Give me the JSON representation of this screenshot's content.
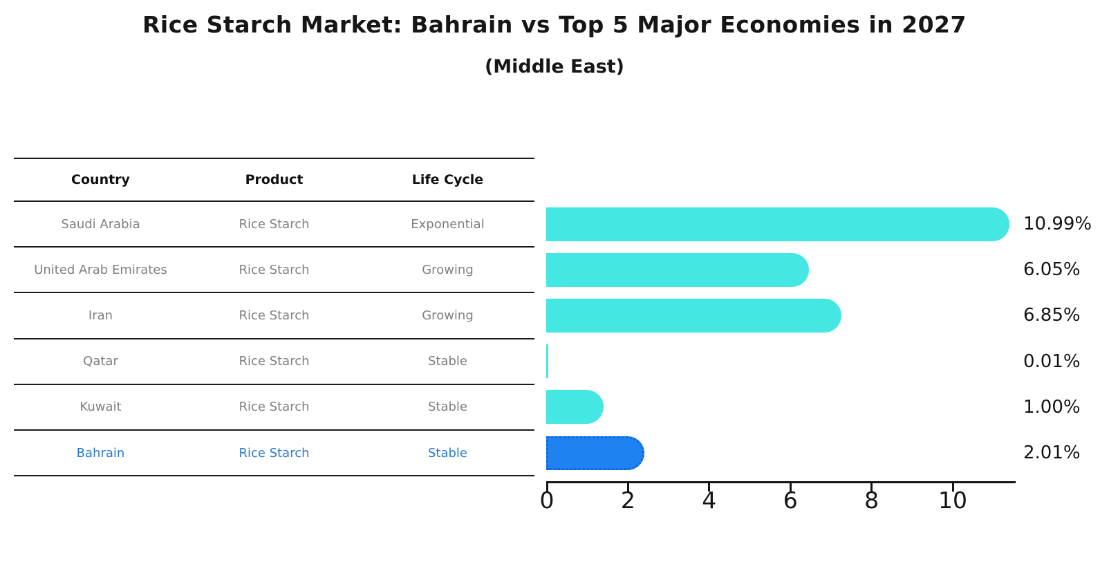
{
  "title": "Rice Starch Market: Bahrain vs Top 5 Major Economies in 2027",
  "subtitle": "(Middle East)",
  "table": {
    "headers": [
      "Country",
      "Product",
      "Life Cycle"
    ],
    "rows": [
      {
        "country": "Saudi Arabia",
        "product": "Rice Starch",
        "life_cycle": "Exponential",
        "highlighted": false
      },
      {
        "country": "United Arab Emirates",
        "product": "Rice Starch",
        "life_cycle": "Growing",
        "highlighted": false
      },
      {
        "country": "Iran",
        "product": "Rice Starch",
        "life_cycle": "Growing",
        "highlighted": false
      },
      {
        "country": "Qatar",
        "product": "Rice Starch",
        "life_cycle": "Stable",
        "highlighted": false
      },
      {
        "country": "Kuwait",
        "product": "Rice Starch",
        "life_cycle": "Stable",
        "highlighted": false
      },
      {
        "country": "Bahrain",
        "product": "Rice Starch",
        "life_cycle": "Stable",
        "highlighted": true
      }
    ]
  },
  "chart_data": {
    "type": "bar",
    "orientation": "horizontal",
    "title": "Rice Starch Market: Bahrain vs Top 5 Major Economies in 2027",
    "subtitle": "(Middle East)",
    "categories": [
      "Saudi Arabia",
      "United Arab Emirates",
      "Iran",
      "Qatar",
      "Kuwait",
      "Bahrain"
    ],
    "values": [
      10.99,
      6.05,
      6.85,
      0.01,
      1.0,
      2.01
    ],
    "value_labels": [
      "10.99%",
      "6.05%",
      "6.85%",
      "0.01%",
      "1.00%",
      "2.01%"
    ],
    "x_ticks": [
      "0",
      "2",
      "4",
      "6",
      "8",
      "10"
    ],
    "xlim": [
      0,
      11.6
    ],
    "grid": false,
    "legend": false,
    "bar_color": "#45e7e3",
    "highlight_bar_color": "#1e82f0",
    "highlight_index": 5
  },
  "colors": {
    "bar_cyan": "#45e7e3",
    "bar_blue": "#1e82f0",
    "bar_blue_border": "#0d66dc",
    "highlight_text": "#2b7bce",
    "table_text": "#7f7f7f",
    "axis_text": "#141414"
  }
}
